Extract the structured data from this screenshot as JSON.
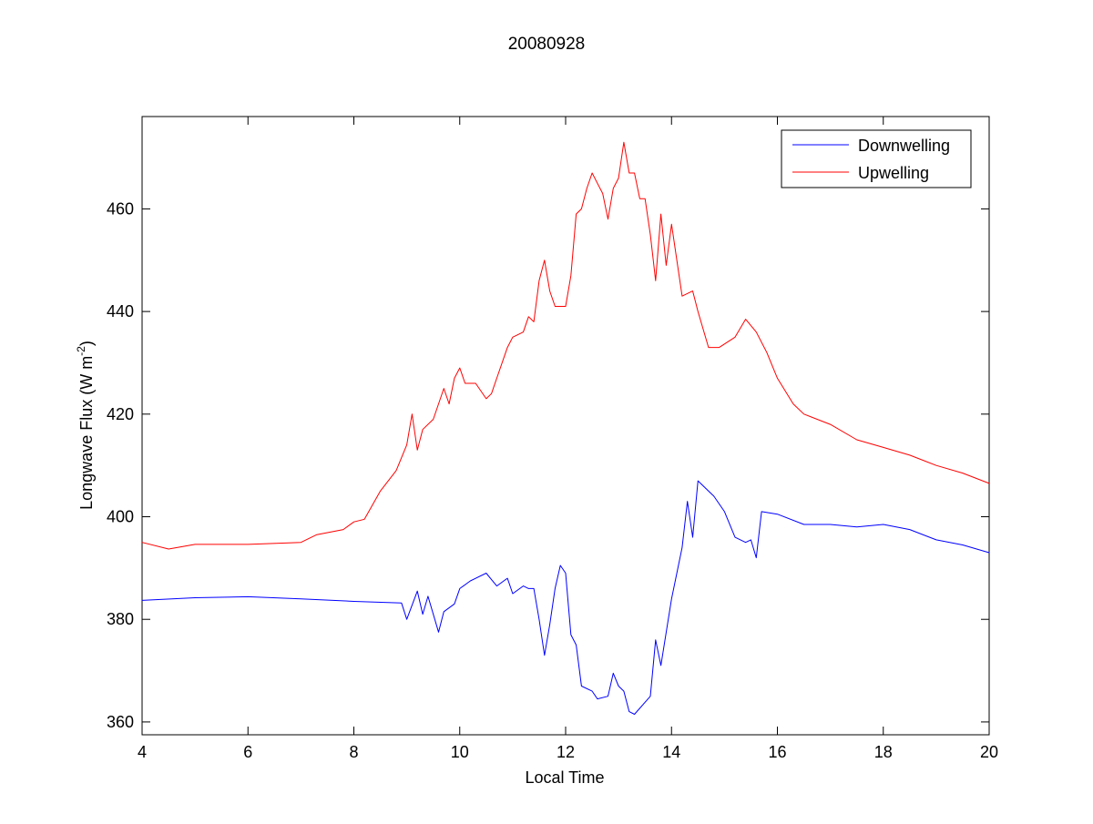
{
  "chart_data": {
    "type": "line",
    "title": "20080928",
    "xlabel": "Local Time",
    "ylabel": "Longwave Flux (W m",
    "ylabel_sup": "-2",
    "ylabel_close": ")",
    "xlim": [
      4,
      20
    ],
    "ylim": [
      357.5,
      478
    ],
    "xticks": [
      4,
      6,
      8,
      10,
      12,
      14,
      16,
      18,
      20
    ],
    "yticks": [
      360,
      380,
      400,
      420,
      440,
      460
    ],
    "grid": false,
    "legend_position": "top-right",
    "series": [
      {
        "name": "Downwelling",
        "color": "#0000ff",
        "x": [
          4,
          5,
          6,
          7,
          8,
          8.9,
          9.0,
          9.2,
          9.3,
          9.4,
          9.6,
          9.7,
          9.9,
          10.0,
          10.2,
          10.5,
          10.7,
          10.9,
          11.0,
          11.2,
          11.3,
          11.4,
          11.5,
          11.6,
          11.7,
          11.8,
          11.9,
          12.0,
          12.1,
          12.2,
          12.3,
          12.5,
          12.6,
          12.8,
          12.9,
          13.0,
          13.1,
          13.2,
          13.3,
          13.6,
          13.7,
          13.8,
          14.0,
          14.2,
          14.3,
          14.4,
          14.5,
          14.8,
          15.0,
          15.2,
          15.4,
          15.5,
          15.6,
          15.7,
          16.0,
          16.5,
          17,
          17.5,
          18,
          18.5,
          19,
          19.5,
          20
        ],
        "y": [
          383.7,
          384.2,
          384.4,
          384,
          383.5,
          383.2,
          380,
          385.5,
          381,
          384.5,
          377.5,
          381.5,
          383,
          386,
          387.5,
          389,
          386.5,
          388,
          385,
          386.5,
          386,
          386,
          380,
          373,
          379,
          386,
          390.5,
          389,
          377,
          375,
          367,
          366,
          364.5,
          365,
          369.5,
          367,
          366,
          362,
          361.5,
          365,
          376,
          371,
          384,
          394,
          403,
          396,
          407,
          404,
          401,
          396,
          395,
          395.5,
          392,
          401,
          400.5,
          398.5,
          398.5,
          398,
          398.5,
          397.5,
          395.5,
          394.5,
          393
        ]
      },
      {
        "name": "Upwelling",
        "color": "#ff0000",
        "x": [
          4,
          4.5,
          5,
          6,
          7,
          7.3,
          7.8,
          8,
          8.2,
          8.5,
          8.8,
          9.0,
          9.1,
          9.2,
          9.3,
          9.5,
          9.7,
          9.8,
          9.9,
          10.0,
          10.1,
          10.3,
          10.5,
          10.6,
          10.7,
          10.9,
          11.0,
          11.2,
          11.3,
          11.4,
          11.5,
          11.6,
          11.7,
          11.8,
          12.0,
          12.1,
          12.2,
          12.3,
          12.4,
          12.5,
          12.6,
          12.7,
          12.8,
          12.9,
          13.0,
          13.1,
          13.2,
          13.3,
          13.4,
          13.5,
          13.6,
          13.7,
          13.8,
          13.9,
          14.0,
          14.2,
          14.4,
          14.5,
          14.7,
          14.9,
          15.2,
          15.4,
          15.6,
          15.8,
          16.0,
          16.3,
          16.5,
          17,
          17.5,
          18,
          18.5,
          19,
          19.5,
          20
        ],
        "y": [
          395,
          393.7,
          394.6,
          394.6,
          395,
          396.5,
          397.5,
          399,
          399.5,
          405,
          409,
          414,
          420,
          413,
          417,
          419,
          425,
          422,
          427,
          429,
          426,
          426,
          423,
          424,
          427,
          433,
          435,
          436,
          439,
          438,
          446,
          450,
          444,
          441,
          441,
          447,
          459,
          460,
          464,
          467,
          465,
          463,
          458,
          464,
          466,
          473,
          467,
          467,
          462,
          462,
          455,
          446,
          459,
          449,
          457,
          443,
          444,
          440,
          433,
          433,
          435,
          438.5,
          436,
          432,
          427,
          422,
          420,
          418,
          415,
          413.5,
          412,
          410,
          408.5,
          406.5
        ]
      }
    ]
  }
}
